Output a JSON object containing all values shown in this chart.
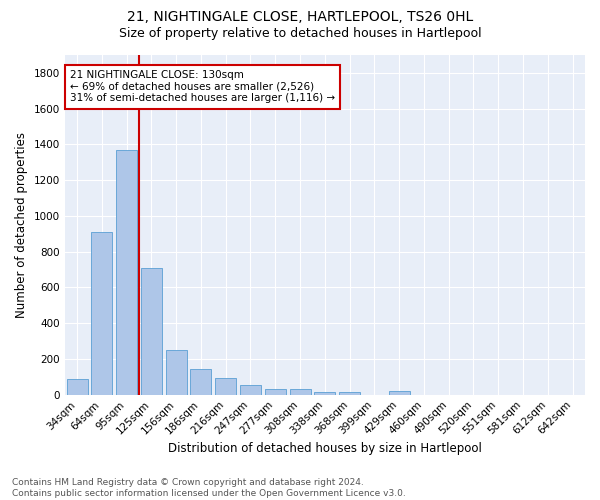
{
  "title": "21, NIGHTINGALE CLOSE, HARTLEPOOL, TS26 0HL",
  "subtitle": "Size of property relative to detached houses in Hartlepool",
  "xlabel": "Distribution of detached houses by size in Hartlepool",
  "ylabel": "Number of detached properties",
  "categories": [
    "34sqm",
    "64sqm",
    "95sqm",
    "125sqm",
    "156sqm",
    "186sqm",
    "216sqm",
    "247sqm",
    "277sqm",
    "308sqm",
    "338sqm",
    "368sqm",
    "399sqm",
    "429sqm",
    "460sqm",
    "490sqm",
    "520sqm",
    "551sqm",
    "581sqm",
    "612sqm",
    "642sqm"
  ],
  "values": [
    90,
    910,
    1370,
    710,
    250,
    145,
    95,
    55,
    30,
    30,
    18,
    15,
    0,
    20,
    0,
    0,
    0,
    0,
    0,
    0,
    0
  ],
  "bar_color": "#aec6e8",
  "bar_edgecolor": "#5a9fd4",
  "vline_color": "#cc0000",
  "annotation_text": "21 NIGHTINGALE CLOSE: 130sqm\n← 69% of detached houses are smaller (2,526)\n31% of semi-detached houses are larger (1,116) →",
  "annotation_box_color": "white",
  "annotation_box_edgecolor": "#cc0000",
  "ylim": [
    0,
    1900
  ],
  "yticks": [
    0,
    200,
    400,
    600,
    800,
    1000,
    1200,
    1400,
    1600,
    1800
  ],
  "plot_bg_color": "#e8eef8",
  "footer": "Contains HM Land Registry data © Crown copyright and database right 2024.\nContains public sector information licensed under the Open Government Licence v3.0.",
  "title_fontsize": 10,
  "subtitle_fontsize": 9,
  "xlabel_fontsize": 8.5,
  "ylabel_fontsize": 8.5,
  "tick_fontsize": 7.5,
  "footer_fontsize": 6.5,
  "annotation_fontsize": 7.5
}
